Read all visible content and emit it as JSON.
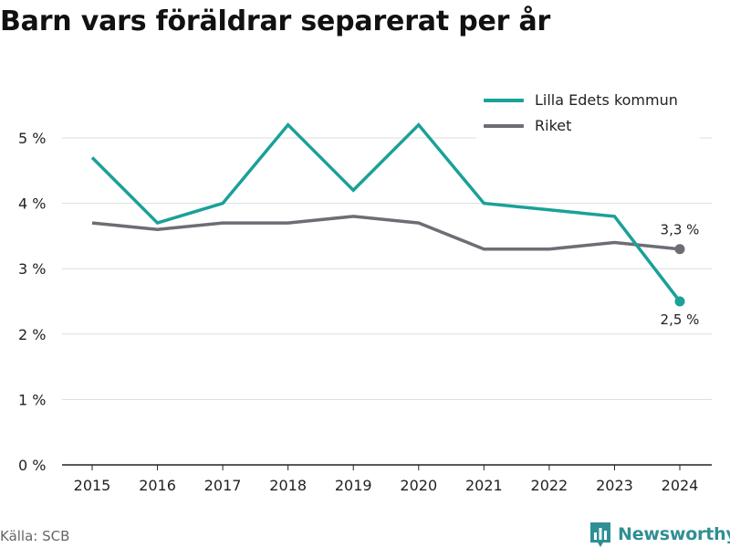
{
  "title": "Barn vars föräldrar separerat per år",
  "source": "Källa: SCB",
  "brand": {
    "name": "Newsworthy",
    "icon": "bar-chart-icon",
    "color": "#2f8f95"
  },
  "chart_data": {
    "type": "line",
    "title": "Barn vars föräldrar separerat per år",
    "xlabel": "",
    "ylabel": "",
    "x": [
      "2015",
      "2016",
      "2017",
      "2018",
      "2019",
      "2020",
      "2021",
      "2022",
      "2023",
      "2024"
    ],
    "ylim": [
      0,
      5.5
    ],
    "yticks": [
      0,
      1,
      2,
      3,
      4,
      5
    ],
    "ytick_labels": [
      "0 %",
      "1 %",
      "2 %",
      "3 %",
      "4 %",
      "5 %"
    ],
    "grid": true,
    "legend": "top-right",
    "series": [
      {
        "name": "Lilla Edets kommun",
        "color": "#1aa198",
        "values": [
          4.7,
          3.7,
          4.0,
          5.2,
          4.2,
          5.2,
          4.0,
          3.9,
          3.8,
          2.5
        ],
        "end_label": "2,5 %"
      },
      {
        "name": "Riket",
        "color": "#6e6d74",
        "values": [
          3.7,
          3.6,
          3.7,
          3.7,
          3.8,
          3.7,
          3.3,
          3.3,
          3.4,
          3.3
        ],
        "end_label": "3,3 %"
      }
    ]
  }
}
